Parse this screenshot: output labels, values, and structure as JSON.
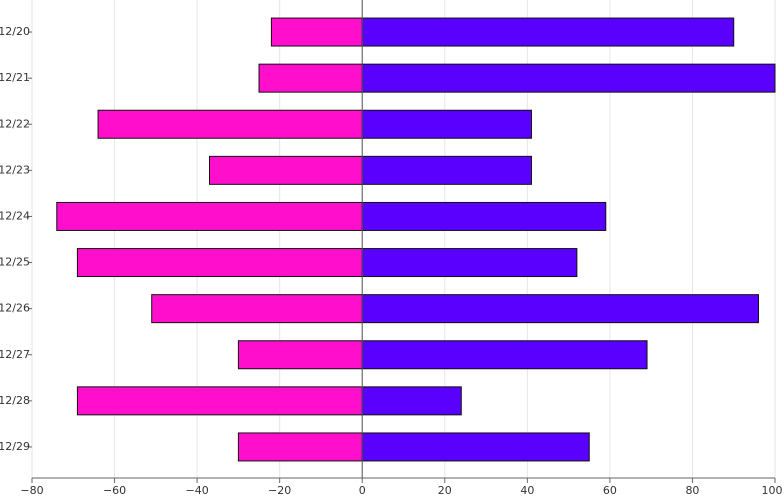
{
  "chart_data": {
    "type": "bar",
    "orientation": "horizontal",
    "categories": [
      "12/20",
      "12/21",
      "12/22",
      "12/23",
      "12/24",
      "12/25",
      "12/26",
      "12/27",
      "12/28",
      "12/29"
    ],
    "series": [
      {
        "color": "#ff0ecb",
        "values": [
          -22,
          -25,
          -64,
          -37,
          -74,
          -69,
          -51,
          -30,
          -69,
          -30
        ]
      },
      {
        "color": "#5a00ff",
        "values": [
          90,
          100,
          41,
          41,
          59,
          52,
          96,
          69,
          24,
          55
        ]
      }
    ],
    "xlim": [
      -80,
      100
    ],
    "xticks": [
      {
        "value": -80,
        "label": "−80"
      },
      {
        "value": -60,
        "label": "−60"
      },
      {
        "value": -40,
        "label": "−40"
      },
      {
        "value": -20,
        "label": "−20"
      },
      0,
      20,
      40,
      60,
      80,
      100
    ],
    "grid": true
  }
}
